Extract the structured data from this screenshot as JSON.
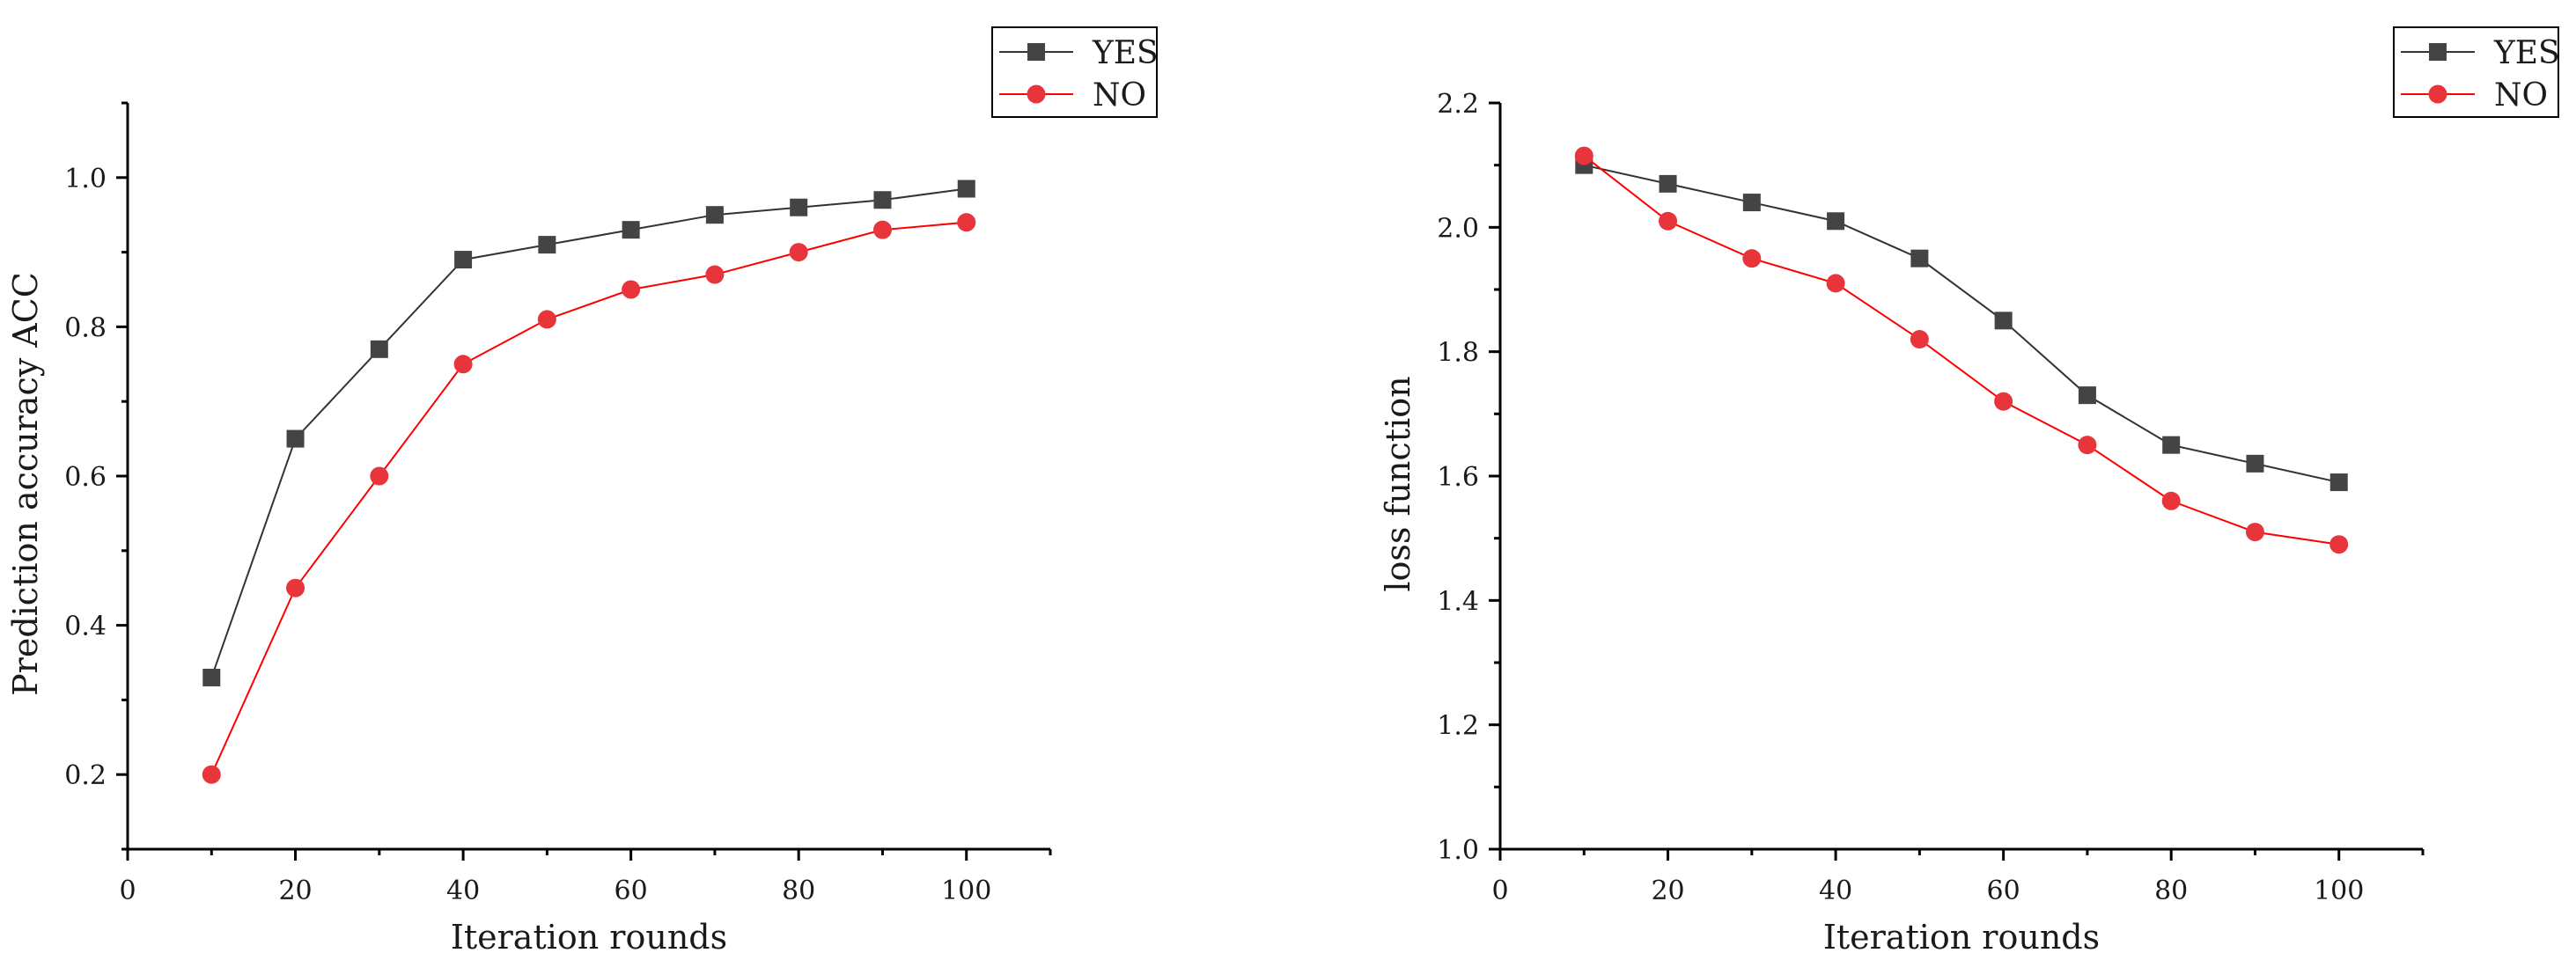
{
  "chart_data": [
    {
      "type": "line",
      "title": "",
      "xlabel": "Iteration rounds",
      "ylabel": "Prediction accuracy ACC",
      "xlim": [
        0,
        110
      ],
      "ylim": [
        0.1,
        1.1
      ],
      "xticks": [
        0,
        20,
        40,
        60,
        80,
        100
      ],
      "xtick_labels": [
        "0",
        "20",
        "40",
        "60",
        "80",
        "100"
      ],
      "yticks": [
        0.2,
        0.4,
        0.6,
        0.8,
        1.0
      ],
      "ytick_labels": [
        "0.2",
        "0.4",
        "0.6",
        "0.8",
        "1.0"
      ],
      "x": [
        10,
        20,
        30,
        40,
        50,
        60,
        70,
        80,
        90,
        100
      ],
      "legend_position": "top-right",
      "grid": false,
      "series": [
        {
          "name": "YES",
          "marker": "square",
          "color": "#444444",
          "line_color": "#333333",
          "values": [
            0.33,
            0.65,
            0.77,
            0.89,
            0.91,
            0.93,
            0.95,
            0.96,
            0.97,
            0.985
          ]
        },
        {
          "name": "NO",
          "marker": "circle",
          "color": "#e8353b",
          "line_color": "#ff0000",
          "values": [
            0.2,
            0.45,
            0.6,
            0.75,
            0.81,
            0.85,
            0.87,
            0.9,
            0.93,
            0.94
          ]
        }
      ]
    },
    {
      "type": "line",
      "title": "",
      "xlabel": "Iteration rounds",
      "ylabel": "loss function",
      "xlim": [
        0,
        110
      ],
      "ylim": [
        1.0,
        2.2
      ],
      "xticks": [
        0,
        20,
        40,
        60,
        80,
        100
      ],
      "xtick_labels": [
        "0",
        "20",
        "40",
        "60",
        "80",
        "100"
      ],
      "yticks": [
        1.0,
        1.2,
        1.4,
        1.6,
        1.8,
        2.0,
        2.2
      ],
      "ytick_labels": [
        "1.0",
        "1.2",
        "1.4",
        "1.6",
        "1.8",
        "2.0",
        "2.2"
      ],
      "x": [
        10,
        20,
        30,
        40,
        50,
        60,
        70,
        80,
        90,
        100
      ],
      "legend_position": "top-right",
      "grid": false,
      "series": [
        {
          "name": "YES",
          "marker": "square",
          "color": "#444444",
          "line_color": "#333333",
          "values": [
            2.1,
            2.07,
            2.04,
            2.01,
            1.95,
            1.85,
            1.73,
            1.65,
            1.62,
            1.59
          ]
        },
        {
          "name": "NO",
          "marker": "circle",
          "color": "#e8353b",
          "line_color": "#ff0000",
          "values": [
            2.115,
            2.01,
            1.95,
            1.91,
            1.82,
            1.72,
            1.65,
            1.56,
            1.51,
            1.49
          ]
        }
      ]
    }
  ]
}
